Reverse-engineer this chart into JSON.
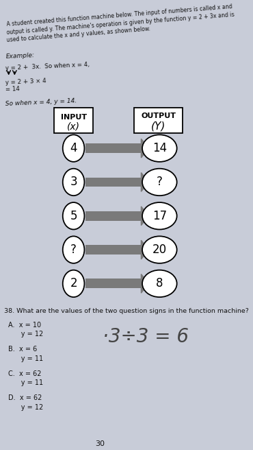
{
  "bg_color": "#c8ccd8",
  "header_lines": [
    "A student created this function machine below. The input of numbers is called x and",
    "output is called y. The machine’s operation is given by the function y = 2 + 3x and is",
    "used to calculate the x and y values, as shown below."
  ],
  "example_label": "Example:",
  "ex_line1": "y = 2 +  3x.  So when x = 4,",
  "ex_line2": "y = 2 + 3 × 4",
  "ex_line3": "= 14",
  "so_when": "So when x = 4, y = 14.",
  "input_label": "INPUT",
  "input_sub": "(x)",
  "output_label": "OUTPUT",
  "output_sub": "(Y)",
  "input_vals": [
    "4",
    "3",
    "5",
    "?",
    "2"
  ],
  "output_vals": [
    "14",
    "?",
    "17",
    "20",
    "8"
  ],
  "question": "38. What are the values of the two question signs in the function machine?",
  "opt_A_l1": "A.  x = 10",
  "opt_A_l2": "      y = 12",
  "opt_B_l1": "B.  x = 6",
  "opt_B_l2": "      y = 11",
  "opt_C_l1": "C.  x = 62",
  "opt_C_l2": "      y = 11",
  "opt_D_l1": "D.  x = 62",
  "opt_D_l2": "      y = 12",
  "handwritten": "·3÷3 = 6",
  "page_num": "30",
  "arrow_color": "#7a7a7a",
  "box_fill": "#ffffff",
  "box_edge": "#000000",
  "circle_fill": "#ffffff",
  "circle_edge": "#000000",
  "text_color": "#111111"
}
